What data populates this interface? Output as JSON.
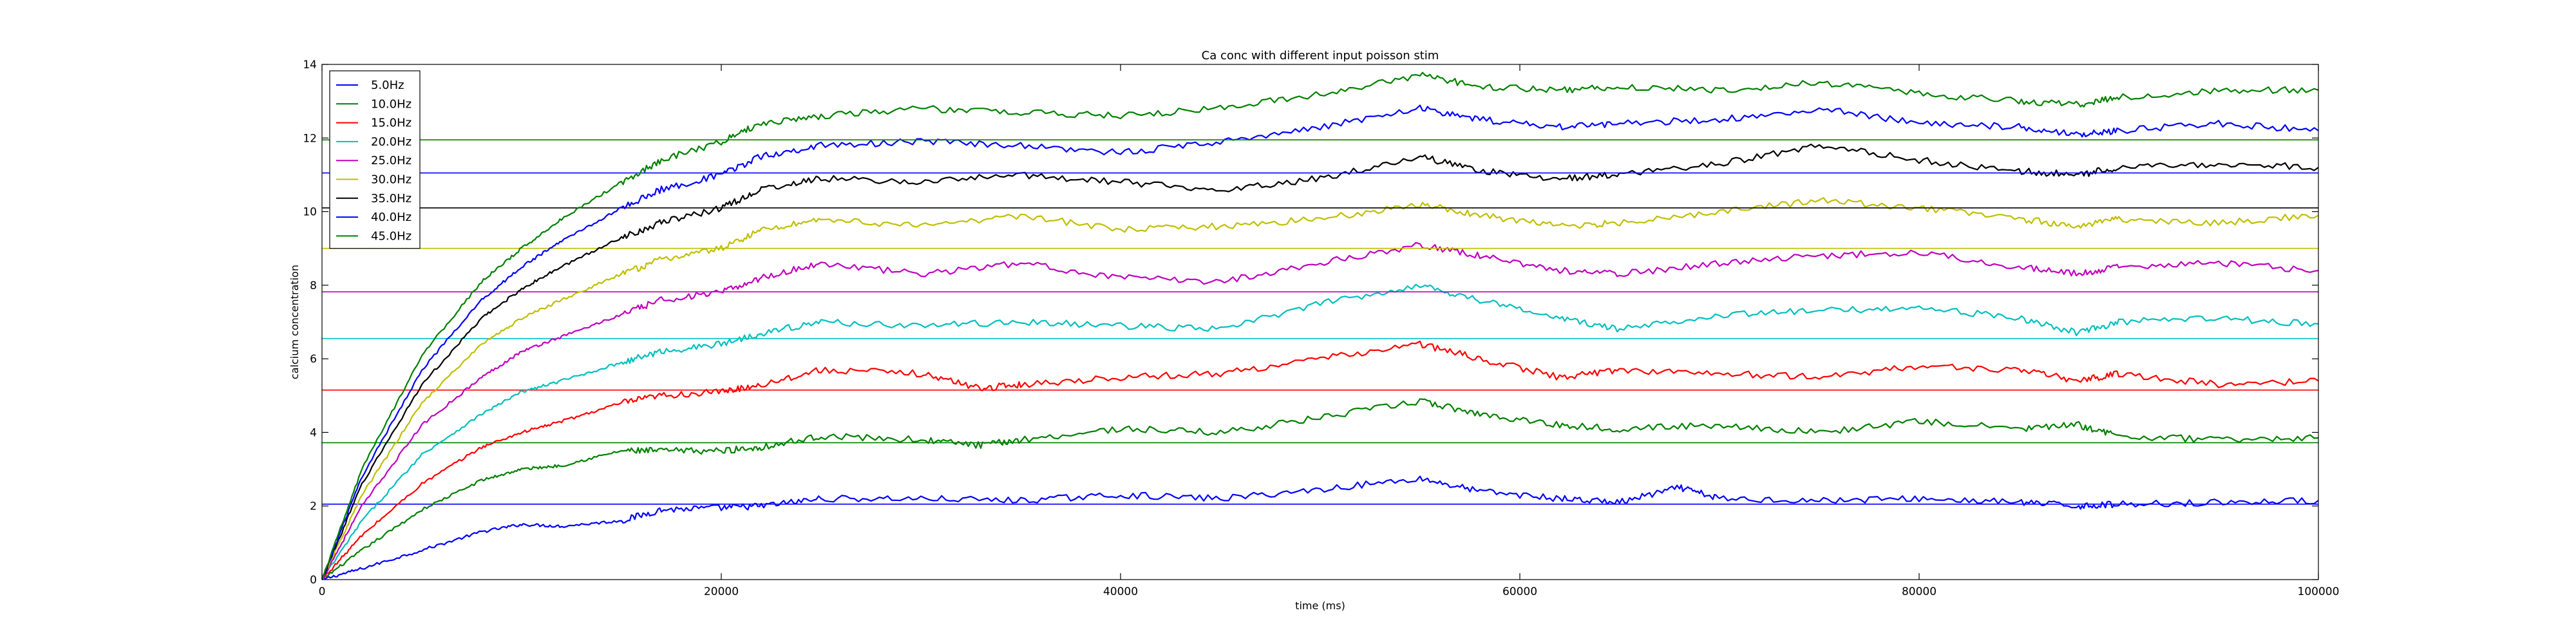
{
  "chart_data": {
    "type": "line",
    "title": "Ca conc with different input poisson stim",
    "xlabel": "time (ms)",
    "ylabel": "calcium concentration",
    "xlim": [
      0,
      100000
    ],
    "ylim": [
      0,
      14
    ],
    "xticks": [
      0,
      20000,
      40000,
      60000,
      80000,
      100000
    ],
    "yticks": [
      0,
      2,
      4,
      6,
      8,
      10,
      12,
      14
    ],
    "grid": false,
    "legend_position": "top-left",
    "series": [
      {
        "name": "5.0Hz",
        "color": "#0000ff",
        "steady_state": 2.05,
        "x": [
          0,
          2000,
          5000,
          8000,
          10000,
          12000,
          15000,
          17000,
          20000,
          22000,
          25000,
          30000,
          35000,
          40000,
          45000,
          50000,
          55000,
          58000,
          62000,
          65000,
          68000,
          70000,
          75000,
          80000,
          85000,
          88000,
          90000,
          95000,
          100000
        ],
        "y": [
          0,
          0.3,
          0.8,
          1.3,
          1.5,
          1.45,
          1.6,
          1.9,
          1.95,
          2.0,
          2.2,
          2.2,
          2.15,
          2.3,
          2.2,
          2.45,
          2.75,
          2.4,
          2.2,
          2.1,
          2.5,
          2.2,
          2.15,
          2.2,
          2.1,
          2.0,
          2.05,
          2.1,
          2.15
        ]
      },
      {
        "name": "10.0Hz",
        "color": "#008000",
        "steady_state": 3.72,
        "x": [
          0,
          2000,
          5000,
          8000,
          10000,
          12000,
          15000,
          17000,
          20000,
          22000,
          25000,
          30000,
          33000,
          35000,
          40000,
          45000,
          50000,
          55000,
          58000,
          62000,
          65000,
          70000,
          75000,
          80000,
          85000,
          88000,
          90000,
          95000,
          100000
        ],
        "y": [
          0,
          0.8,
          1.9,
          2.7,
          3.0,
          3.1,
          3.5,
          3.5,
          3.5,
          3.6,
          3.9,
          3.8,
          3.65,
          3.8,
          4.1,
          4.0,
          4.4,
          4.85,
          4.5,
          4.2,
          4.1,
          4.2,
          4.0,
          4.3,
          4.1,
          4.2,
          3.9,
          3.8,
          3.85
        ]
      },
      {
        "name": "15.0Hz",
        "color": "#ff0000",
        "steady_state": 5.15,
        "x": [
          0,
          2000,
          5000,
          8000,
          10000,
          12000,
          15000,
          17000,
          20000,
          22000,
          25000,
          30000,
          33000,
          35000,
          40000,
          45000,
          50000,
          55000,
          58000,
          62000,
          65000,
          70000,
          75000,
          80000,
          85000,
          88000,
          90000,
          95000,
          100000
        ],
        "y": [
          0,
          1.2,
          2.6,
          3.6,
          4.0,
          4.3,
          4.8,
          5.0,
          5.1,
          5.3,
          5.7,
          5.6,
          5.2,
          5.3,
          5.5,
          5.6,
          6.0,
          6.4,
          6.0,
          5.5,
          5.7,
          5.6,
          5.5,
          5.8,
          5.7,
          5.4,
          5.6,
          5.3,
          5.4
        ]
      },
      {
        "name": "20.0Hz",
        "color": "#00bfbf",
        "steady_state": 6.55,
        "x": [
          0,
          2000,
          5000,
          8000,
          10000,
          12000,
          15000,
          17000,
          20000,
          22000,
          25000,
          30000,
          35000,
          40000,
          45000,
          50000,
          55000,
          58000,
          62000,
          65000,
          70000,
          75000,
          80000,
          85000,
          88000,
          90000,
          95000,
          100000
        ],
        "y": [
          0,
          1.6,
          3.4,
          4.5,
          5.1,
          5.4,
          5.9,
          6.2,
          6.4,
          6.7,
          7.0,
          6.9,
          7.0,
          6.9,
          6.8,
          7.5,
          8.0,
          7.6,
          7.1,
          6.8,
          7.2,
          7.3,
          7.4,
          7.1,
          6.7,
          7.0,
          7.1,
          6.95
        ]
      },
      {
        "name": "25.0Hz",
        "color": "#bf00bf",
        "steady_state": 7.82,
        "x": [
          0,
          2000,
          5000,
          8000,
          10000,
          12000,
          15000,
          17000,
          20000,
          22000,
          25000,
          30000,
          35000,
          40000,
          45000,
          50000,
          55000,
          58000,
          62000,
          65000,
          70000,
          75000,
          80000,
          85000,
          88000,
          90000,
          95000,
          100000
        ],
        "y": [
          0,
          2.0,
          4.2,
          5.5,
          6.2,
          6.6,
          7.2,
          7.6,
          7.8,
          8.2,
          8.6,
          8.3,
          8.6,
          8.2,
          8.1,
          8.6,
          9.1,
          8.8,
          8.4,
          8.3,
          8.6,
          8.8,
          8.9,
          8.5,
          8.3,
          8.5,
          8.6,
          8.4
        ]
      },
      {
        "name": "30.0Hz",
        "color": "#bfbf00",
        "steady_state": 9.0,
        "x": [
          0,
          2000,
          5000,
          8000,
          10000,
          12000,
          15000,
          17000,
          20000,
          22000,
          25000,
          30000,
          35000,
          40000,
          45000,
          50000,
          55000,
          58000,
          62000,
          65000,
          70000,
          75000,
          80000,
          85000,
          88000,
          90000,
          95000,
          100000
        ],
        "y": [
          0,
          2.3,
          4.8,
          6.4,
          7.1,
          7.6,
          8.3,
          8.7,
          9.0,
          9.5,
          9.8,
          9.6,
          9.9,
          9.5,
          9.6,
          9.8,
          10.2,
          9.9,
          9.6,
          9.7,
          10.0,
          10.3,
          10.1,
          9.8,
          9.6,
          9.8,
          9.7,
          9.9
        ]
      },
      {
        "name": "35.0Hz",
        "color": "#000000",
        "steady_state": 10.1,
        "x": [
          0,
          2000,
          5000,
          8000,
          10000,
          12000,
          15000,
          17000,
          20000,
          22000,
          25000,
          30000,
          35000,
          40000,
          45000,
          50000,
          55000,
          58000,
          62000,
          65000,
          70000,
          75000,
          80000,
          85000,
          88000,
          90000,
          95000,
          100000
        ],
        "y": [
          0,
          2.6,
          5.3,
          7.1,
          7.9,
          8.5,
          9.3,
          9.7,
          10.1,
          10.6,
          10.9,
          10.8,
          11.0,
          10.8,
          10.6,
          10.9,
          11.5,
          11.1,
          10.9,
          11.0,
          11.3,
          11.8,
          11.4,
          11.1,
          11.0,
          11.2,
          11.3,
          11.2
        ]
      },
      {
        "name": "40.0Hz",
        "color": "#0000ff",
        "steady_state": 11.05,
        "x": [
          0,
          2000,
          5000,
          8000,
          10000,
          12000,
          15000,
          17000,
          20000,
          22000,
          25000,
          30000,
          35000,
          40000,
          45000,
          50000,
          55000,
          58000,
          62000,
          65000,
          70000,
          75000,
          80000,
          85000,
          88000,
          90000,
          95000,
          100000
        ],
        "y": [
          0,
          2.8,
          5.7,
          7.6,
          8.5,
          9.2,
          10.1,
          10.6,
          11.0,
          11.5,
          11.8,
          11.9,
          11.8,
          11.6,
          11.9,
          12.3,
          12.8,
          12.5,
          12.3,
          12.4,
          12.5,
          12.8,
          12.4,
          12.3,
          12.1,
          12.2,
          12.4,
          12.2
        ]
      },
      {
        "name": "45.0Hz",
        "color": "#008000",
        "steady_state": 11.95,
        "x": [
          0,
          2000,
          5000,
          8000,
          10000,
          12000,
          15000,
          17000,
          20000,
          22000,
          25000,
          30000,
          35000,
          40000,
          45000,
          50000,
          55000,
          58000,
          62000,
          65000,
          70000,
          75000,
          80000,
          85000,
          88000,
          90000,
          95000,
          100000
        ],
        "y": [
          0,
          3.0,
          6.1,
          8.1,
          9.0,
          9.8,
          10.8,
          11.4,
          11.9,
          12.4,
          12.6,
          12.8,
          12.7,
          12.6,
          12.8,
          13.2,
          13.7,
          13.4,
          13.3,
          13.4,
          13.3,
          13.5,
          13.2,
          13.0,
          12.9,
          13.1,
          13.3,
          13.3
        ]
      }
    ]
  }
}
